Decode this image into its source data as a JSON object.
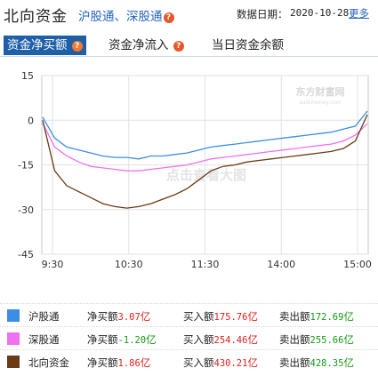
{
  "header": {
    "title": "北向资金",
    "subtitle": "沪股通、深股通",
    "date_label": "数据日期：",
    "date_value": "2020-10-28",
    "more_link": "更多"
  },
  "tabs": [
    {
      "label": "资金净买额",
      "active": true,
      "has_help_icon": true
    },
    {
      "label": "资金净流入",
      "active": false,
      "has_help_icon": true
    },
    {
      "label": "当日资金余额",
      "active": false,
      "has_help_icon": false
    }
  ],
  "help_glyph": "?",
  "watermarks": {
    "logo_text": "东方财富网",
    "logo_url": "eastmoney.com",
    "center_text": "点击查看大图"
  },
  "chart_data": {
    "type": "line",
    "x_ticks": [
      "9:30",
      "10:30",
      "11:30",
      "14:00",
      "15:00"
    ],
    "y_ticks": [
      "15",
      "0",
      "-15",
      "-30",
      "-45"
    ],
    "ylim": [
      -45,
      15
    ],
    "grid": true,
    "series": [
      {
        "name": "沪股通",
        "color": "#3a8ee6",
        "values": [
          1,
          -6,
          -9,
          -10,
          -11,
          -12,
          -12.5,
          -12.5,
          -13,
          -12,
          -12,
          -11.5,
          -11,
          -10,
          -9,
          -8.5,
          -8,
          -7.5,
          -7,
          -6.5,
          -6,
          -5.5,
          -5,
          -4.5,
          -4,
          -3,
          -2,
          3.07
        ]
      },
      {
        "name": "深股通",
        "color": "#f070f0",
        "values": [
          -1,
          -9,
          -12,
          -14,
          -15.5,
          -16,
          -16.5,
          -17,
          -17,
          -16.5,
          -16,
          -15.5,
          -15,
          -14,
          -13,
          -12.5,
          -12,
          -11.5,
          -11,
          -10.5,
          -10,
          -9.5,
          -9,
          -8.5,
          -8,
          -7,
          -5,
          -1.2
        ]
      },
      {
        "name": "北向资金",
        "color": "#6b3a16",
        "values": [
          0,
          -17,
          -22,
          -24,
          -26,
          -28,
          -29,
          -29.5,
          -29,
          -28,
          -26.5,
          -25,
          -23,
          -20,
          -17,
          -15.5,
          -15,
          -14,
          -13.5,
          -13,
          -12.5,
          -12,
          -11.5,
          -11,
          -10.5,
          -9.5,
          -7,
          1.86
        ]
      }
    ]
  },
  "legend": [
    {
      "name": "沪股通",
      "color": "#3a8ee6",
      "net_label": "净买额",
      "net_value": "3.07",
      "net_unit": "亿",
      "net_color": "#e02020",
      "buy_label": "买入额",
      "buy_value": "175.76",
      "buy_unit": "亿",
      "sell_label": "卖出额",
      "sell_value": "172.69",
      "sell_unit": "亿"
    },
    {
      "name": "深股通",
      "color": "#f070f0",
      "net_label": "净买额",
      "net_value": "-1.20",
      "net_unit": "亿",
      "net_color": "#169a16",
      "buy_label": "买入额",
      "buy_value": "254.46",
      "buy_unit": "亿",
      "sell_label": "卖出额",
      "sell_value": "255.66",
      "sell_unit": "亿"
    },
    {
      "name": "北向资金",
      "color": "#6b3a16",
      "net_label": "净买额",
      "net_value": "1.86",
      "net_unit": "亿",
      "net_color": "#e02020",
      "buy_label": "买入额",
      "buy_value": "430.21",
      "buy_unit": "亿",
      "sell_label": "卖出额",
      "sell_value": "428.35",
      "sell_unit": "亿"
    }
  ]
}
